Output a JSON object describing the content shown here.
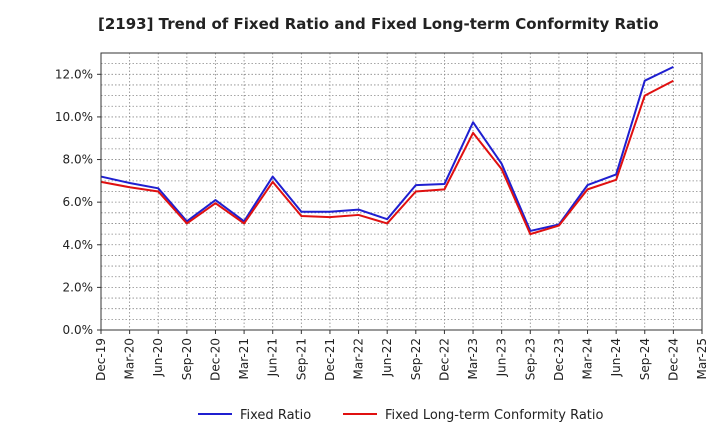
{
  "chart_data": {
    "type": "line",
    "title": "[2193]  Trend of Fixed Ratio and Fixed Long-term Conformity Ratio",
    "xlabel": "",
    "ylabel": "",
    "categories": [
      "Dec-19",
      "Mar-20",
      "Jun-20",
      "Sep-20",
      "Dec-20",
      "Mar-21",
      "Jun-21",
      "Sep-21",
      "Dec-21",
      "Mar-22",
      "Jun-22",
      "Sep-22",
      "Dec-22",
      "Mar-23",
      "Jun-23",
      "Sep-23",
      "Dec-23",
      "Mar-24",
      "Jun-24",
      "Sep-24",
      "Dec-24",
      "Mar-25"
    ],
    "ylim": [
      0,
      13
    ],
    "yticks": [
      0,
      2,
      4,
      6,
      8,
      10,
      12
    ],
    "ytick_labels": [
      "0.0%",
      "2.0%",
      "4.0%",
      "6.0%",
      "8.0%",
      "10.0%",
      "12.0%"
    ],
    "grid": true,
    "legend_position": "bottom",
    "series": [
      {
        "name": "Fixed Ratio",
        "color": "#1f1fd0",
        "values": [
          7.2,
          6.9,
          6.65,
          5.1,
          6.1,
          5.1,
          7.2,
          5.55,
          5.55,
          5.65,
          5.2,
          6.8,
          6.85,
          9.75,
          7.8,
          4.65,
          4.95,
          6.8,
          7.3,
          11.7,
          12.35,
          null
        ]
      },
      {
        "name": "Fixed Long-term Conformity Ratio",
        "color": "#e01010",
        "values": [
          6.95,
          6.7,
          6.5,
          5.0,
          5.95,
          5.0,
          6.95,
          5.35,
          5.3,
          5.4,
          5.0,
          6.5,
          6.6,
          9.25,
          7.55,
          4.5,
          4.9,
          6.6,
          7.05,
          11.0,
          11.7,
          null
        ]
      }
    ]
  }
}
